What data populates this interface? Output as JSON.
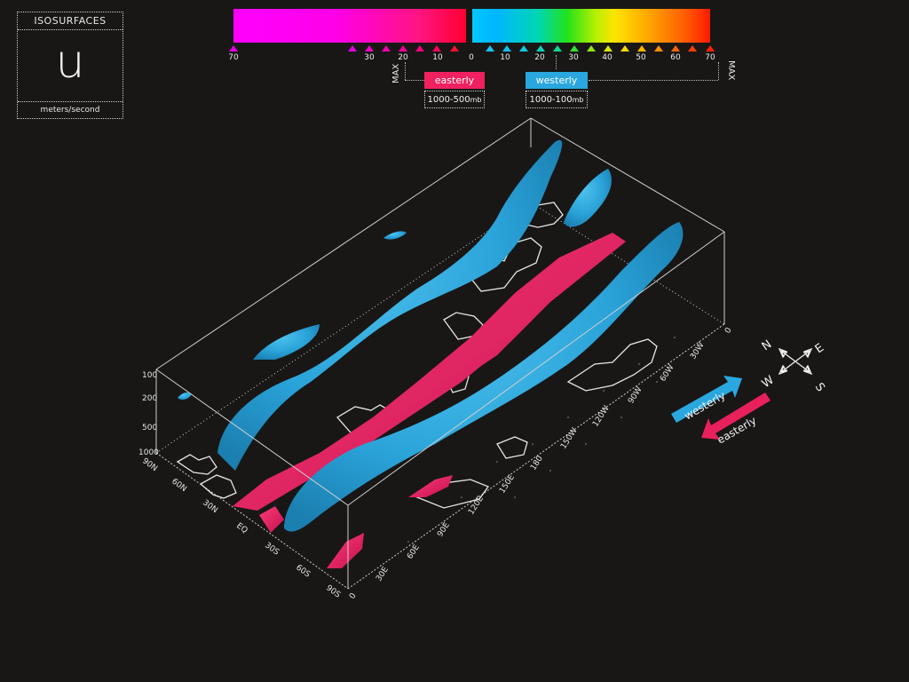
{
  "panel": {
    "title": "ISOSURFACES",
    "variable": "u",
    "unit": "meters/second"
  },
  "easterly_scale": {
    "ticks": [
      "70",
      "30",
      "20",
      "10",
      "0"
    ],
    "max_label": "MAX",
    "badge": "easterly",
    "range_main": "1000-500",
    "range_unit": "mb",
    "color": "#f0215e"
  },
  "westerly_scale": {
    "ticks": [
      "0",
      "10",
      "20",
      "30",
      "40",
      "50",
      "60",
      "70"
    ],
    "max_label": "MAX",
    "badge": "westerly",
    "range_main": "1000-100",
    "range_unit": "mb",
    "color": "#2aa7de"
  },
  "box": {
    "pressure_levels": [
      "100",
      "200",
      "500",
      "1000"
    ],
    "latitudes": [
      "90N",
      "60N",
      "30N",
      "EQ",
      "30S",
      "60S",
      "90S"
    ],
    "longitudes": [
      "30E",
      "60E",
      "90E",
      "120E",
      "150E",
      "180",
      "150W",
      "120W",
      "90W",
      "60W",
      "30W"
    ],
    "lon_start": "0",
    "lon_end": "0"
  },
  "compass": {
    "n": "N",
    "e": "E",
    "s": "S",
    "w": "W"
  },
  "arrows": {
    "westerly": "westerly",
    "easterly": "easterly"
  },
  "colors": {
    "background": "#181716",
    "westerly": "#2aa7de",
    "easterly": "#e8205c",
    "frame": "#cfcfcf"
  }
}
